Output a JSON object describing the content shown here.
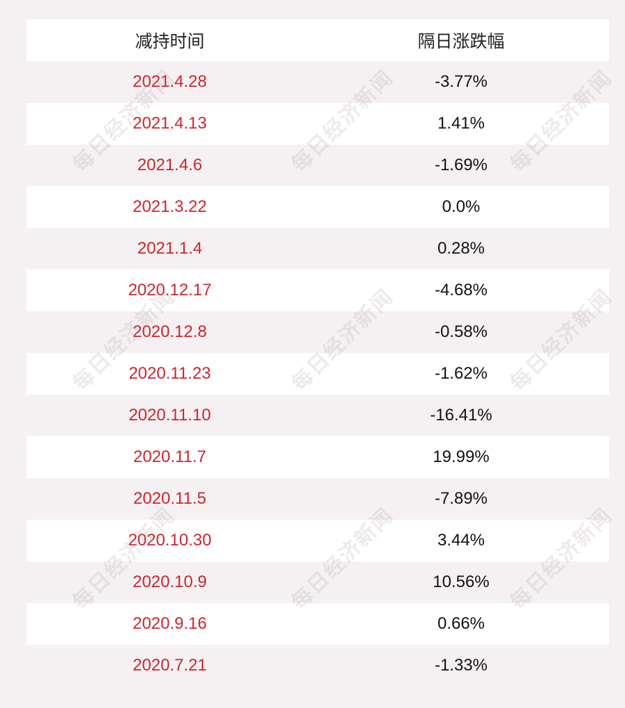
{
  "header": {
    "date_label": "减持时间",
    "change_label": "隔日涨跌幅"
  },
  "rows": [
    {
      "date": "2021.4.28",
      "change": "-3.77%"
    },
    {
      "date": "2021.4.13",
      "change": "1.41%"
    },
    {
      "date": "2021.4.6",
      "change": "-1.69%"
    },
    {
      "date": "2021.3.22",
      "change": "0.0%"
    },
    {
      "date": "2021.1.4",
      "change": "0.28%"
    },
    {
      "date": "2020.12.17",
      "change": "-4.68%"
    },
    {
      "date": "2020.12.8",
      "change": "-0.58%"
    },
    {
      "date": "2020.11.23",
      "change": "-1.62%"
    },
    {
      "date": "2020.11.10",
      "change": "-16.41%"
    },
    {
      "date": "2020.11.7",
      "change": "19.99%"
    },
    {
      "date": "2020.11.5",
      "change": "-7.89%"
    },
    {
      "date": "2020.10.30",
      "change": "3.44%"
    },
    {
      "date": "2020.10.9",
      "change": "10.56%"
    },
    {
      "date": "2020.9.16",
      "change": "0.66%"
    },
    {
      "date": "2020.7.21",
      "change": "-1.33%"
    }
  ],
  "watermark": "每日经济新闻",
  "colors": {
    "date_text": "#d0242b",
    "value_text": "#111111",
    "row_light": "#ffffff",
    "row_tint": "#f5f1f2"
  }
}
